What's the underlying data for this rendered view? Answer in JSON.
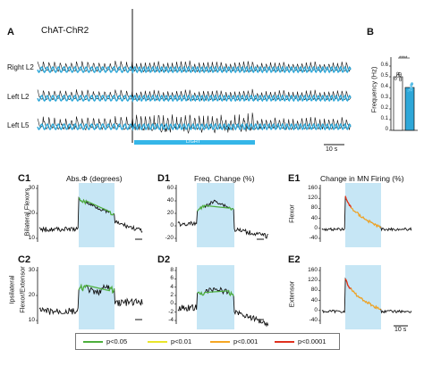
{
  "panelA": {
    "letter": "A",
    "title": "ChAT-ChR2",
    "traces": [
      "Right L2",
      "Left L2",
      "Left L5"
    ],
    "stim_label": "LIGHT",
    "scalebar": "10 s",
    "colors": {
      "trace": "#111111",
      "envelope": "#2ea7d8",
      "light": "#35b6e8"
    }
  },
  "panelB": {
    "letter": "B",
    "ylabel": "Frequency (Hz)",
    "yticks": [
      "0",
      "0.1",
      "0.2",
      "0.3",
      "0.4",
      "0.5",
      "0.6"
    ],
    "significance": "****",
    "chart_data": {
      "type": "bar",
      "ylabel": "Frequency (Hz)",
      "ylim": [
        0,
        0.65
      ],
      "values": [
        0.5,
        0.4
      ],
      "colors": [
        "#ffffff",
        "#2ea7d8"
      ]
    }
  },
  "C1": {
    "letter": "C1",
    "title": "Abs.Φ (degrees)",
    "ylabel": "Bilateral Flexors",
    "yticks": [
      "10",
      "20",
      "30"
    ]
  },
  "C2": {
    "letter": "C2",
    "ylabel1": "Ipsilateral",
    "ylabel2": "Flexor/Extensor",
    "yticks": [
      "10",
      "20",
      "30"
    ]
  },
  "D1": {
    "letter": "D1",
    "title": "Freq. Change (%)",
    "yticks": [
      "-20",
      "0",
      "20",
      "40",
      "60"
    ]
  },
  "D2": {
    "letter": "D2",
    "yticks": [
      "-4",
      "-2",
      "0",
      "2",
      "4",
      "6",
      "8"
    ]
  },
  "E1": {
    "letter": "E1",
    "title": "Change in MN Firing (%)",
    "ylabel": "Flexor",
    "yticks": [
      "-40",
      "0",
      "40",
      "80",
      "120",
      "160"
    ]
  },
  "E2": {
    "letter": "E2",
    "ylabel": "Extensor",
    "yticks": [
      "-40",
      "0",
      "40",
      "80",
      "120",
      "160"
    ]
  },
  "scalebarE": "10 s",
  "legend": [
    {
      "label": "p<0.05",
      "color": "#4caf3c"
    },
    {
      "label": "p<0.01",
      "color": "#e9e52a"
    },
    {
      "label": "p<0.001",
      "color": "#f5a623"
    },
    {
      "label": "p<0.0001",
      "color": "#e0301e"
    }
  ]
}
